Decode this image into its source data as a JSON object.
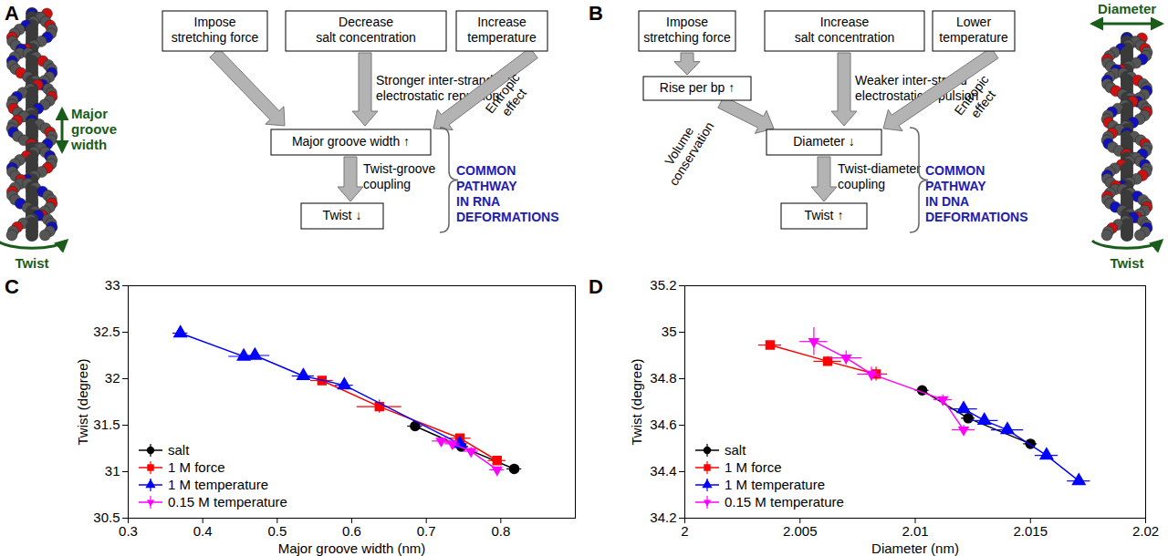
{
  "chart_data": [
    {
      "type": "scatter",
      "panel_label": "C",
      "x_label": "Major groove width (nm)",
      "y_label": "Twist (degree)",
      "xlim": [
        0.3,
        0.9
      ],
      "ylim": [
        30.5,
        33
      ],
      "xticks": [
        0.3,
        0.4,
        0.5,
        0.6,
        0.7,
        0.8
      ],
      "yticks": [
        30.5,
        31,
        31.5,
        32,
        32.5,
        33
      ],
      "grid": false,
      "legend": "bottom-left",
      "series": [
        {
          "name": "salt",
          "color": "#000000",
          "marker": "circle",
          "line_style": "solid",
          "x": [
            0.685,
            0.747,
            0.818
          ],
          "values": [
            31.49,
            31.27,
            31.03
          ],
          "x_error": [
            0.01,
            0.01,
            0.01
          ],
          "y_error": [
            0.02,
            0.02,
            0.02
          ]
        },
        {
          "name": "1 M force",
          "color": "#ff0000",
          "marker": "square",
          "line_style": "solid",
          "x": [
            0.56,
            0.637,
            0.745,
            0.795
          ],
          "values": [
            31.98,
            31.7,
            31.36,
            31.12
          ],
          "x_error": [
            0.015,
            0.03,
            0.015,
            0.012
          ],
          "y_error": [
            0.04,
            0.07,
            0.04,
            0.04
          ]
        },
        {
          "name": "1 M temperature",
          "color": "#0000ff",
          "marker": "triangle",
          "line_style": "solid",
          "x": [
            0.37,
            0.455,
            0.47,
            0.535,
            0.59,
            0.745
          ],
          "values": [
            32.49,
            32.24,
            32.25,
            32.03,
            31.93,
            31.3
          ],
          "x_error": [
            0.01,
            0.02,
            0.02,
            0.015,
            0.012,
            0.01
          ],
          "y_error": [
            0.05,
            0.04,
            0.04,
            0.04,
            0.03,
            0.03
          ]
        },
        {
          "name": "0.15 M temperature",
          "color": "#ff00ff",
          "marker": "triangle-down",
          "line_style": "solid",
          "x": [
            0.72,
            0.735,
            0.76,
            0.795
          ],
          "values": [
            31.33,
            31.3,
            31.22,
            31.02
          ],
          "x_error": [
            0.012,
            0.01,
            0.01,
            0.01
          ],
          "y_error": [
            0.04,
            0.04,
            0.04,
            0.03
          ]
        }
      ]
    },
    {
      "type": "scatter",
      "panel_label": "D",
      "x_label": "Diameter (nm)",
      "y_label": "Twist (degree)",
      "xlim": [
        2,
        2.02
      ],
      "ylim": [
        34.2,
        35.2
      ],
      "xticks": [
        2,
        2.005,
        2.01,
        2.015,
        2.02
      ],
      "yticks": [
        34.2,
        34.4,
        34.6,
        34.8,
        35,
        35.2
      ],
      "grid": false,
      "legend": "bottom-left",
      "series": [
        {
          "name": "salt",
          "color": "#000000",
          "marker": "circle",
          "line_style": "solid",
          "x": [
            2.0103,
            2.0123,
            2.015
          ],
          "values": [
            34.75,
            34.63,
            34.52
          ],
          "x_error": [
            0.0003,
            0.0003,
            0.0003
          ],
          "y_error": [
            0.01,
            0.01,
            0.01
          ]
        },
        {
          "name": "1 M force",
          "color": "#ff0000",
          "marker": "square",
          "line_style": "solid",
          "x": [
            2.0037,
            2.0062,
            2.0083
          ],
          "values": [
            34.945,
            34.875,
            34.82
          ],
          "x_error": [
            0.0005,
            0.0006,
            0.0005
          ],
          "y_error": [
            0.015,
            0.02,
            0.03
          ]
        },
        {
          "name": "1 M temperature",
          "color": "#0000ff",
          "marker": "triangle",
          "line_style": "solid",
          "x": [
            2.0121,
            2.013,
            2.014,
            2.0157,
            2.0171
          ],
          "values": [
            34.67,
            34.62,
            34.58,
            34.47,
            34.36
          ],
          "x_error": [
            0.0006,
            0.0006,
            0.0007,
            0.0005,
            0.0005
          ],
          "y_error": [
            0.015,
            0.015,
            0.02,
            0.015,
            0.015
          ]
        },
        {
          "name": "0.15 M temperature",
          "color": "#ff00ff",
          "marker": "triangle-down",
          "line_style": "solid",
          "x": [
            2.0056,
            2.007,
            2.0081,
            2.0112,
            2.0121
          ],
          "values": [
            34.96,
            34.89,
            34.82,
            34.71,
            34.58
          ],
          "x_error": [
            0.0006,
            0.0007,
            0.0006,
            0.0004,
            0.0005
          ],
          "y_error": [
            0.06,
            0.03,
            0.03,
            0.02,
            0.02
          ]
        }
      ]
    }
  ],
  "diagrams": [
    {
      "panel": "A",
      "molecule_labels": {
        "groove": [
          "Major",
          "groove",
          "width"
        ],
        "twist": "Twist"
      },
      "causes": [
        {
          "lines": [
            "Impose",
            "stretching force"
          ]
        },
        {
          "lines": [
            "Decrease",
            "salt concentration"
          ],
          "arrow_label": [
            "Stronger inter-strand",
            "electrostatic repulsion"
          ]
        },
        {
          "lines": [
            "Increase",
            "temperature"
          ],
          "arrow_label": [
            "Entropic",
            "effect"
          ]
        }
      ],
      "effect": "Major groove width ↑",
      "coupling": [
        "Twist-groove",
        "coupling"
      ],
      "result": "Twist ↓",
      "pathway": [
        "COMMON",
        "PATHWAY",
        "IN RNA",
        "DEFORMATIONS"
      ]
    },
    {
      "panel": "B",
      "molecule_labels": {
        "diameter": "Diameter",
        "twist": "Twist"
      },
      "causes": [
        {
          "lines": [
            "Impose",
            "stretching force"
          ],
          "intermediate": "Rise per bp ↑",
          "intermediate_label": [
            "Volume",
            "conservation"
          ]
        },
        {
          "lines": [
            "Increase",
            "salt concentration"
          ],
          "arrow_label": [
            "Weaker inter-strand",
            "electrostatic repulsion"
          ]
        },
        {
          "lines": [
            "Lower",
            "temperature"
          ],
          "arrow_label": [
            "Entropic",
            "effect"
          ]
        }
      ],
      "effect": "Diameter ↓",
      "coupling": [
        "Twist-diameter",
        "coupling"
      ],
      "result": "Twist ↑",
      "pathway": [
        "COMMON",
        "PATHWAY",
        "IN DNA",
        "DEFORMATIONS"
      ]
    }
  ]
}
